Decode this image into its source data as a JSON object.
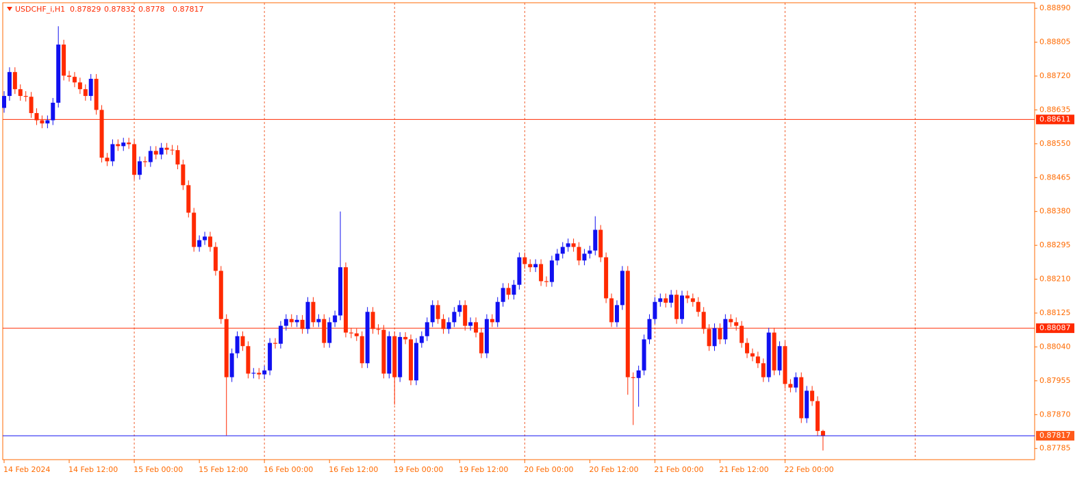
{
  "chart_data": {
    "type": "candlestick",
    "title": "USDCHF_i,H1",
    "up_color": "#1010f0",
    "down_color": "#ff2a00",
    "grid_color": "#f06030",
    "ylim": [
      0.87757,
      0.88904
    ],
    "yticks": [
      {
        "value": 0.8889,
        "label": "0.88890"
      },
      0.88805,
      {
        "value": 0.8872,
        "label": "0.88720"
      },
      0.88635,
      {
        "value": 0.8855,
        "label": "0.88550"
      },
      0.88465,
      {
        "value": 0.8838,
        "label": "0.88380"
      },
      0.88295,
      {
        "value": 0.8821,
        "label": "0.88210"
      },
      0.88125,
      {
        "value": 0.8804,
        "label": "0.88040"
      },
      0.87955,
      {
        "value": 0.8787,
        "label": "0.87870"
      },
      0.87785
    ],
    "hlines": [
      {
        "value": 0.88611,
        "color": "#ff2a00"
      },
      {
        "value": 0.88087,
        "color": "#ff2a00"
      }
    ],
    "price_line": {
      "value": 0.87817,
      "color": "#1010f0",
      "label_color": "#ff5a1a"
    },
    "categories": [
      "14 Feb 2024",
      null,
      null,
      null,
      null,
      null,
      null,
      null,
      null,
      null,
      null,
      null,
      "14 Feb 12:00",
      null,
      null,
      null,
      null,
      null,
      null,
      null,
      null,
      null,
      null,
      null,
      "15 Feb 00:00",
      null,
      null,
      null,
      null,
      null,
      null,
      null,
      null,
      null,
      null,
      null,
      "15 Feb 12:00",
      null,
      null,
      null,
      null,
      null,
      null,
      null,
      null,
      null,
      null,
      null,
      "16 Feb 00:00",
      null,
      null,
      null,
      null,
      null,
      null,
      null,
      null,
      null,
      null,
      null,
      "16 Feb 12:00",
      null,
      null,
      null,
      null,
      null,
      null,
      null,
      null,
      null,
      null,
      null,
      "19 Feb 00:00",
      null,
      null,
      null,
      null,
      null,
      null,
      null,
      null,
      null,
      null,
      null,
      "19 Feb 12:00",
      null,
      null,
      null,
      null,
      null,
      null,
      null,
      null,
      null,
      null,
      null,
      "20 Feb 00:00",
      null,
      null,
      null,
      null,
      null,
      null,
      null,
      null,
      null,
      null,
      null,
      "20 Feb 12:00",
      null,
      null,
      null,
      null,
      null,
      null,
      null,
      null,
      null,
      null,
      null,
      "21 Feb 00:00",
      null,
      null,
      null,
      null,
      null,
      null,
      null,
      null,
      null,
      null,
      null,
      "21 Feb 12:00",
      null,
      null,
      null,
      null,
      null,
      null,
      null,
      null,
      null,
      null,
      null,
      "22 Feb 00:00",
      null,
      null,
      null,
      null,
      null,
      null,
      null
    ],
    "open": [
      0.8864,
      0.8867,
      0.8873,
      0.88687,
      0.8867,
      0.88668,
      0.88627,
      0.88609,
      0.88601,
      0.88609,
      0.88653,
      0.88799,
      0.88721,
      0.88718,
      0.88704,
      0.88687,
      0.8867,
      0.88713,
      0.88635,
      0.88515,
      0.88506,
      0.88549,
      0.88544,
      0.88553,
      0.88549,
      0.88472,
      0.88506,
      0.88504,
      0.88532,
      0.88523,
      0.8854,
      0.88535,
      0.88534,
      0.88498,
      0.88446,
      0.88377,
      0.88291,
      0.88308,
      0.88317,
      0.88291,
      0.88231,
      0.8811,
      0.87964,
      0.88024,
      0.88067,
      0.88042,
      0.87973,
      0.87975,
      0.87971,
      0.87981,
      0.8805,
      0.88048,
      0.88093,
      0.8811,
      0.88102,
      0.88108,
      0.88085,
      0.88153,
      0.88102,
      0.8811,
      0.8805,
      0.88102,
      0.88119,
      0.8824,
      0.88076,
      0.88074,
      0.88067,
      0.87999,
      0.88128,
      0.88085,
      0.88083,
      0.87973,
      0.88067,
      0.87964,
      0.88065,
      0.88059,
      0.87956,
      0.8805,
      0.88067,
      0.88102,
      0.88145,
      0.8811,
      0.88085,
      0.88102,
      0.88128,
      0.88145,
      0.88093,
      0.88102,
      0.88076,
      0.88024,
      0.8811,
      0.88102,
      0.88153,
      0.88188,
      0.88171,
      0.88196,
      0.88265,
      0.88248,
      0.8824,
      0.88248,
      0.88205,
      0.88203,
      0.88257,
      0.88274,
      0.88291,
      0.883,
      0.88291,
      0.88257,
      0.88274,
      0.88282,
      0.88334,
      0.88265,
      0.88162,
      0.88102,
      0.88145,
      0.88231,
      0.87964,
      0.87962,
      0.87981,
      0.88059,
      0.8811,
      0.88153,
      0.88162,
      0.88151,
      0.88171,
      0.8811,
      0.88169,
      0.88162,
      0.88153,
      0.88128,
      0.88085,
      0.88042,
      0.88087,
      0.88059,
      0.8811,
      0.88102,
      0.88093,
      0.8805,
      0.88024,
      0.88016,
      0.87999,
      0.87964,
      0.88076,
      0.87981,
      0.88042,
      0.87947,
      0.87938,
      0.87964,
      0.87861,
      0.8793,
      0.87904,
      0.87829
    ],
    "high": [
      0.88682,
      0.88742,
      0.88742,
      0.88699,
      0.88682,
      0.8868,
      0.88639,
      0.88621,
      0.88621,
      0.88665,
      0.88845,
      0.88811,
      0.88733,
      0.8873,
      0.88716,
      0.88699,
      0.88725,
      0.88725,
      0.88647,
      0.88527,
      0.88561,
      0.88561,
      0.88565,
      0.88565,
      0.88561,
      0.88518,
      0.88518,
      0.88544,
      0.88544,
      0.88552,
      0.88552,
      0.88547,
      0.88546,
      0.8851,
      0.88458,
      0.88389,
      0.8832,
      0.88329,
      0.88329,
      0.88303,
      0.88243,
      0.88122,
      0.88036,
      0.88079,
      0.88079,
      0.88054,
      0.87987,
      0.87987,
      0.87993,
      0.88062,
      0.88062,
      0.88105,
      0.88122,
      0.88122,
      0.8812,
      0.8812,
      0.88165,
      0.88165,
      0.88122,
      0.88122,
      0.88114,
      0.88131,
      0.8838,
      0.88252,
      0.88088,
      0.88086,
      0.88079,
      0.8814,
      0.8814,
      0.88097,
      0.88095,
      0.88079,
      0.88079,
      0.88077,
      0.88077,
      0.88071,
      0.88062,
      0.88079,
      0.88114,
      0.88157,
      0.88157,
      0.88122,
      0.88114,
      0.8814,
      0.88157,
      0.88157,
      0.88114,
      0.88114,
      0.88088,
      0.88122,
      0.88122,
      0.88165,
      0.882,
      0.882,
      0.88208,
      0.88277,
      0.88277,
      0.8826,
      0.8826,
      0.8826,
      0.88217,
      0.88269,
      0.88286,
      0.88303,
      0.88312,
      0.88312,
      0.88303,
      0.88286,
      0.88294,
      0.88368,
      0.88346,
      0.88277,
      0.88174,
      0.88157,
      0.88243,
      0.88243,
      0.87976,
      0.87993,
      0.88071,
      0.88122,
      0.88165,
      0.88174,
      0.88174,
      0.88183,
      0.88183,
      0.88181,
      0.88181,
      0.88174,
      0.88165,
      0.8814,
      0.88097,
      0.88099,
      0.88099,
      0.88122,
      0.88122,
      0.88114,
      0.88105,
      0.88062,
      0.88036,
      0.88028,
      0.88011,
      0.88088,
      0.88088,
      0.88054,
      0.88054,
      0.87959,
      0.87976,
      0.87976,
      0.87942,
      0.87942,
      0.87916,
      0.87832
    ],
    "low": [
      0.88628,
      0.88658,
      0.88675,
      0.88658,
      0.88656,
      0.88615,
      0.88597,
      0.88589,
      0.88589,
      0.88597,
      0.88641,
      0.88709,
      0.88706,
      0.88692,
      0.88675,
      0.88658,
      0.88658,
      0.88623,
      0.88503,
      0.88494,
      0.88494,
      0.88532,
      0.88532,
      0.88537,
      0.8846,
      0.8846,
      0.88492,
      0.88492,
      0.88511,
      0.88511,
      0.88523,
      0.88522,
      0.88486,
      0.88434,
      0.88365,
      0.88279,
      0.88279,
      0.88296,
      0.88279,
      0.88219,
      0.88098,
      0.87818,
      0.87952,
      0.88012,
      0.8803,
      0.87961,
      0.87961,
      0.87959,
      0.87959,
      0.87969,
      0.88036,
      0.88036,
      0.88081,
      0.8809,
      0.8809,
      0.88073,
      0.88073,
      0.8809,
      0.8809,
      0.88038,
      0.88038,
      0.8809,
      0.88107,
      0.88064,
      0.88062,
      0.88055,
      0.87987,
      0.87987,
      0.88073,
      0.88071,
      0.87961,
      0.87961,
      0.87895,
      0.87952,
      0.88047,
      0.87944,
      0.87944,
      0.88038,
      0.88055,
      0.8809,
      0.88098,
      0.88073,
      0.88073,
      0.8809,
      0.88116,
      0.88081,
      0.88081,
      0.88064,
      0.88012,
      0.88012,
      0.8809,
      0.8809,
      0.88141,
      0.88159,
      0.88159,
      0.88184,
      0.88236,
      0.88228,
      0.88228,
      0.88193,
      0.88191,
      0.88191,
      0.88245,
      0.88262,
      0.88279,
      0.88279,
      0.88245,
      0.88245,
      0.88262,
      0.8827,
      0.88253,
      0.8815,
      0.8809,
      0.8809,
      0.88133,
      0.8792,
      0.87844,
      0.8789,
      0.87969,
      0.88047,
      0.88098,
      0.88141,
      0.88139,
      0.88139,
      0.88098,
      0.88098,
      0.8815,
      0.88141,
      0.88116,
      0.88073,
      0.8803,
      0.8803,
      0.88047,
      0.88047,
      0.8809,
      0.88081,
      0.88038,
      0.88012,
      0.88004,
      0.87987,
      0.87952,
      0.87952,
      0.87969,
      0.87969,
      0.87935,
      0.87926,
      0.87926,
      0.87849,
      0.87849,
      0.87892,
      0.87817,
      0.8778
    ],
    "close": [
      0.8867,
      0.8873,
      0.88687,
      0.8867,
      0.88668,
      0.88627,
      0.88609,
      0.88601,
      0.88609,
      0.88653,
      0.88799,
      0.88721,
      0.88718,
      0.88704,
      0.88687,
      0.8867,
      0.88713,
      0.88635,
      0.88515,
      0.88506,
      0.88549,
      0.88544,
      0.88553,
      0.88549,
      0.88472,
      0.88506,
      0.88504,
      0.88532,
      0.88523,
      0.8854,
      0.88535,
      0.88534,
      0.88498,
      0.88446,
      0.88377,
      0.88291,
      0.88308,
      0.88317,
      0.88291,
      0.88231,
      0.8811,
      0.87964,
      0.88024,
      0.88067,
      0.88042,
      0.87973,
      0.87975,
      0.87971,
      0.87981,
      0.8805,
      0.88048,
      0.88093,
      0.8811,
      0.88102,
      0.88108,
      0.88085,
      0.88153,
      0.88102,
      0.8811,
      0.8805,
      0.88102,
      0.88119,
      0.8824,
      0.88076,
      0.88074,
      0.88067,
      0.87999,
      0.88128,
      0.88085,
      0.88083,
      0.87973,
      0.88067,
      0.87964,
      0.88065,
      0.88059,
      0.87956,
      0.8805,
      0.88067,
      0.88102,
      0.88145,
      0.8811,
      0.88085,
      0.88102,
      0.88128,
      0.88145,
      0.88093,
      0.88102,
      0.88076,
      0.88024,
      0.8811,
      0.88102,
      0.88153,
      0.88188,
      0.88171,
      0.88196,
      0.88265,
      0.88248,
      0.8824,
      0.88248,
      0.88205,
      0.88203,
      0.88257,
      0.88274,
      0.88291,
      0.883,
      0.88291,
      0.88257,
      0.88274,
      0.88282,
      0.88334,
      0.88265,
      0.88162,
      0.88102,
      0.88145,
      0.88231,
      0.87964,
      0.87962,
      0.87981,
      0.88059,
      0.8811,
      0.88153,
      0.88162,
      0.88151,
      0.88171,
      0.8811,
      0.88169,
      0.88162,
      0.88153,
      0.88128,
      0.88085,
      0.88042,
      0.88087,
      0.88059,
      0.8811,
      0.88102,
      0.88093,
      0.8805,
      0.88024,
      0.88016,
      0.87999,
      0.87964,
      0.88076,
      0.87981,
      0.88042,
      0.87947,
      0.87938,
      0.87964,
      0.87861,
      0.8793,
      0.87904,
      0.87829,
      0.87817
    ]
  }
}
